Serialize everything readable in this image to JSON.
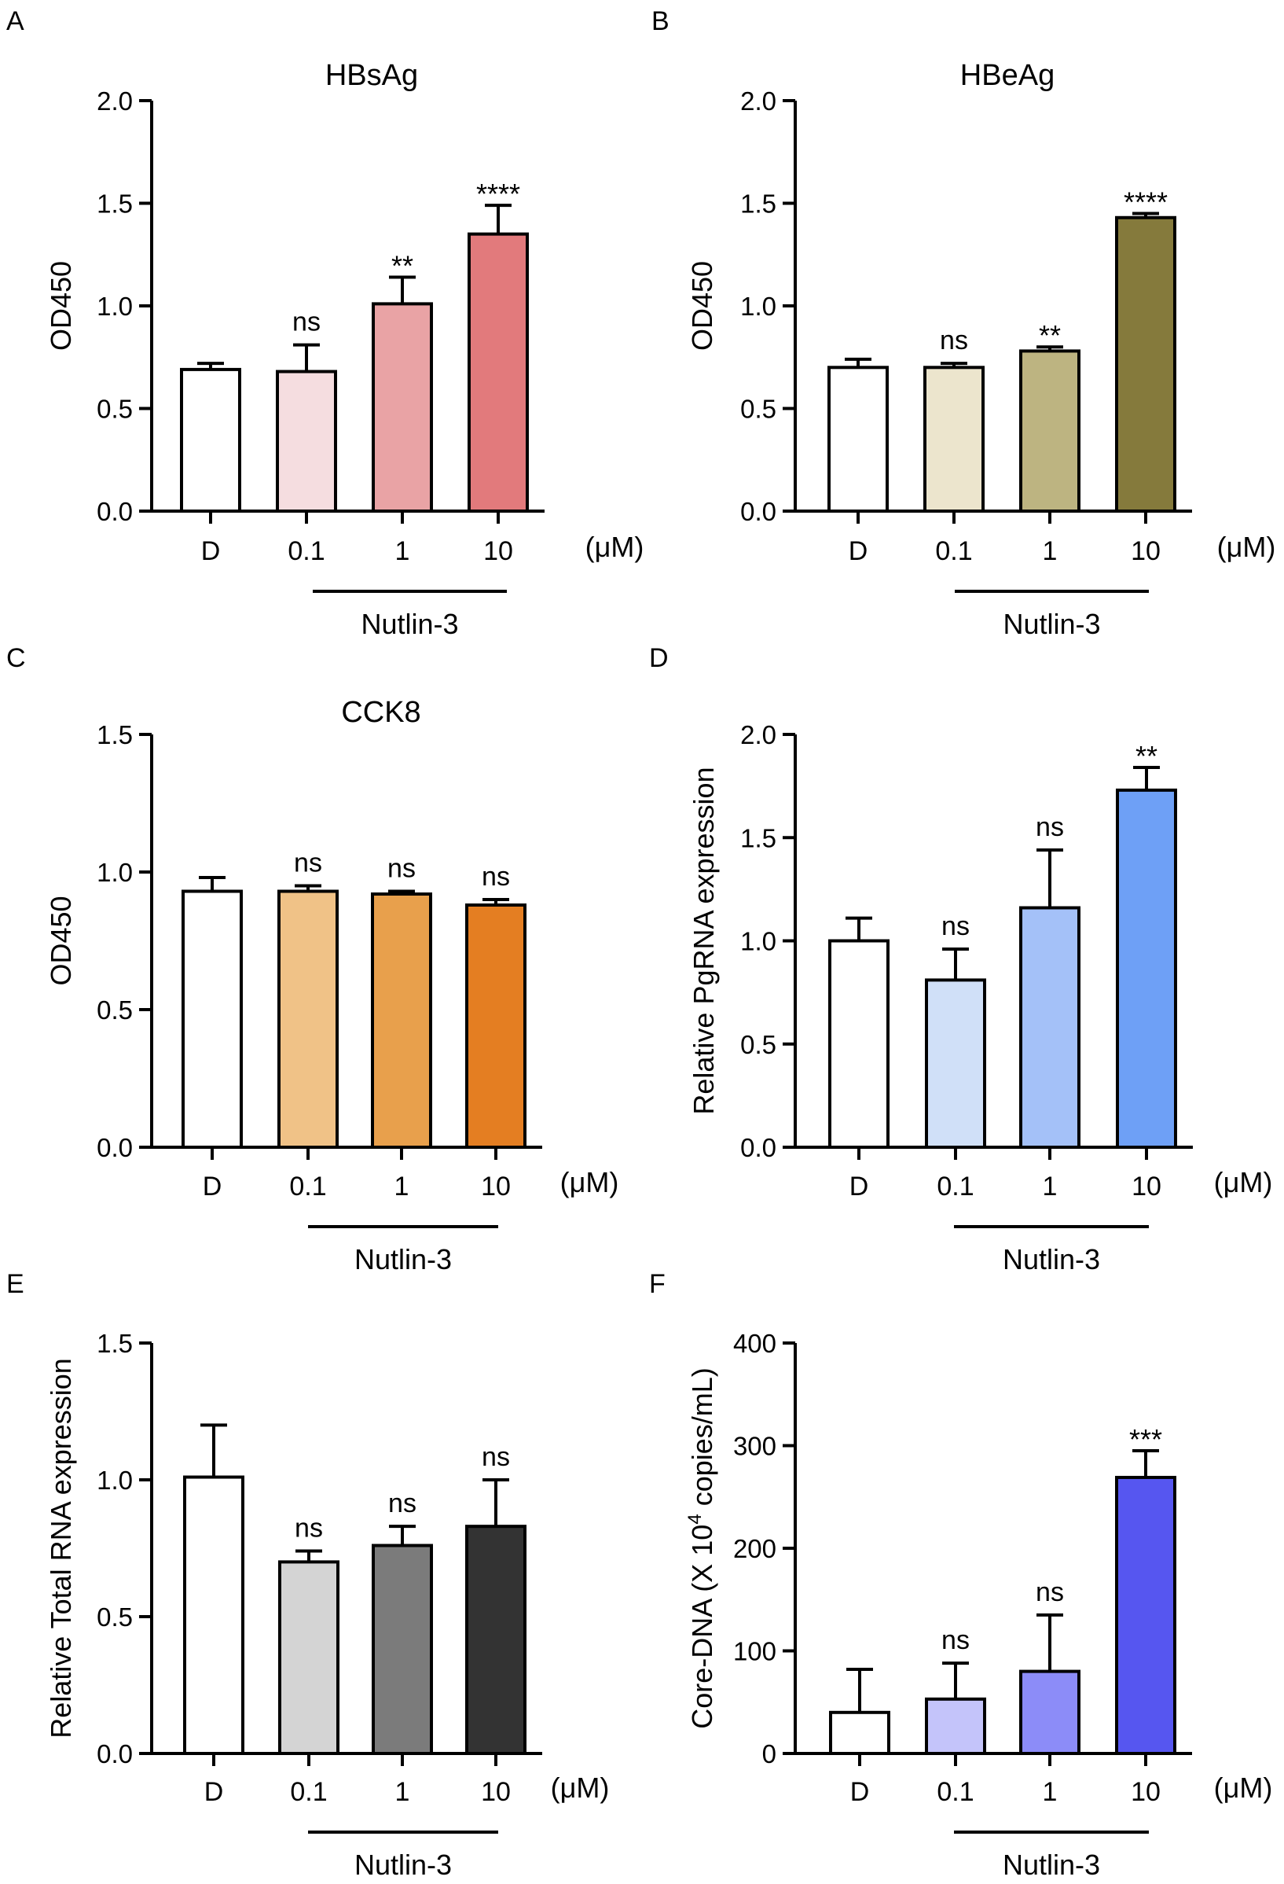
{
  "chart_data": [
    {
      "panel": "A",
      "type": "bar",
      "title": "HBsAg",
      "ylabel": "OD450",
      "categories": [
        "D",
        "0.1",
        "1",
        "10"
      ],
      "unit": "(μM)",
      "group_label": "Nutlin-3",
      "ylim": [
        0,
        2.0
      ],
      "ticks": [
        "0.0",
        "0.5",
        "1.0",
        "1.5",
        "2.0"
      ],
      "values": [
        0.69,
        0.68,
        1.01,
        1.35
      ],
      "errors": [
        0.03,
        0.13,
        0.13,
        0.14
      ],
      "significance": [
        "",
        "ns",
        "**",
        "****"
      ],
      "colors": [
        "#ffffff",
        "#f5dde0",
        "#e9a3a5",
        "#e27a7c"
      ]
    },
    {
      "panel": "B",
      "type": "bar",
      "title": "HBeAg",
      "ylabel": "OD450",
      "categories": [
        "D",
        "0.1",
        "1",
        "10"
      ],
      "unit": "(μM)",
      "group_label": "Nutlin-3",
      "ylim": [
        0,
        2.0
      ],
      "ticks": [
        "0.0",
        "0.5",
        "1.0",
        "1.5",
        "2.0"
      ],
      "values": [
        0.7,
        0.7,
        0.78,
        1.43
      ],
      "errors": [
        0.04,
        0.02,
        0.02,
        0.02
      ],
      "significance": [
        "",
        "ns",
        "**",
        "****"
      ],
      "colors": [
        "#ffffff",
        "#ece5cd",
        "#bdb481",
        "#857a3c"
      ]
    },
    {
      "panel": "C",
      "type": "bar",
      "title": "CCK8",
      "ylabel": "OD450",
      "categories": [
        "D",
        "0.1",
        "1",
        "10"
      ],
      "unit": "(μM)",
      "group_label": "Nutlin-3",
      "ylim": [
        0,
        1.5
      ],
      "ticks": [
        "0.0",
        "0.5",
        "1.0",
        "1.5"
      ],
      "values": [
        0.93,
        0.93,
        0.92,
        0.88
      ],
      "errors": [
        0.05,
        0.02,
        0.01,
        0.02
      ],
      "significance": [
        "",
        "ns",
        "ns",
        "ns"
      ],
      "colors": [
        "#ffffff",
        "#f0c287",
        "#e8a04c",
        "#e47e22"
      ]
    },
    {
      "panel": "D",
      "type": "bar",
      "title": "",
      "ylabel": "Relative PgRNA expression",
      "categories": [
        "D",
        "0.1",
        "1",
        "10"
      ],
      "unit": "(μM)",
      "group_label": "Nutlin-3",
      "ylim": [
        0,
        2.0
      ],
      "ticks": [
        "0.0",
        "0.5",
        "1.0",
        "1.5",
        "2.0"
      ],
      "values": [
        1.0,
        0.81,
        1.16,
        1.73
      ],
      "errors": [
        0.11,
        0.15,
        0.28,
        0.11
      ],
      "significance": [
        "",
        "ns",
        "ns",
        "**"
      ],
      "colors": [
        "#ffffff",
        "#d0e0f8",
        "#a4c1f8",
        "#6ea0f6"
      ]
    },
    {
      "panel": "E",
      "type": "bar",
      "title": "",
      "ylabel": "Relative Total RNA expression",
      "categories": [
        "D",
        "0.1",
        "1",
        "10"
      ],
      "unit": "(μM)",
      "group_label": "Nutlin-3",
      "ylim": [
        0,
        1.5
      ],
      "ticks": [
        "0.0",
        "0.5",
        "1.0",
        "1.5"
      ],
      "values": [
        1.01,
        0.7,
        0.76,
        0.83
      ],
      "errors": [
        0.19,
        0.04,
        0.07,
        0.17
      ],
      "significance": [
        "",
        "ns",
        "ns",
        "ns"
      ],
      "colors": [
        "#ffffff",
        "#d4d4d4",
        "#7b7b7b",
        "#333333"
      ]
    },
    {
      "panel": "F",
      "type": "bar",
      "title": "",
      "ylabel": "Core-DNA (X 10",
      "ylabel_sup": "4",
      "ylabel_tail": " copies/mL)",
      "categories": [
        "D",
        "0.1",
        "1",
        "10"
      ],
      "unit": "(μM)",
      "group_label": "Nutlin-3",
      "ylim": [
        0,
        400
      ],
      "ticks": [
        "0",
        "100",
        "200",
        "300",
        "400"
      ],
      "values": [
        40,
        53,
        80,
        269
      ],
      "errors": [
        42,
        35,
        55,
        26
      ],
      "significance": [
        "",
        "ns",
        "ns",
        "***"
      ],
      "colors": [
        "#ffffff",
        "#c4c4fa",
        "#8c8cf8",
        "#5656f0"
      ]
    }
  ]
}
